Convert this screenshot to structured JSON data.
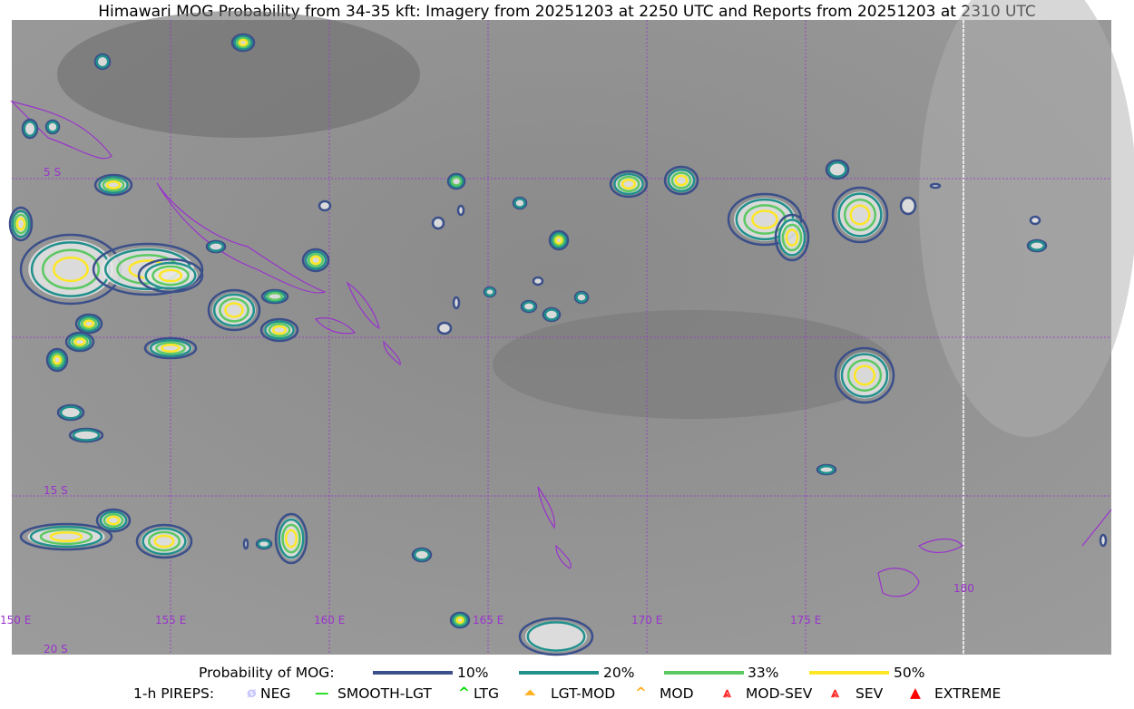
{
  "title": "Himawari MOG Probability from 34-35 kft: Imagery from 20251203 at 2250 UTC and Reports from 20251203 at 2310 UTC",
  "map": {
    "lat_labels": [
      "5 S",
      "15 S",
      "20 S"
    ],
    "lon_labels": [
      "150 E",
      "155 E",
      "160 E",
      "165 E",
      "170 E",
      "175 E",
      "180"
    ],
    "colors": {
      "grid": "#9933cc",
      "coast": "#9933cc",
      "dateline": "#ffffff"
    }
  },
  "legend": {
    "probability_label": "Probability of MOG:",
    "levels": [
      {
        "label": "10%",
        "color": "#3b4f8a"
      },
      {
        "label": "20%",
        "color": "#21908c"
      },
      {
        "label": "33%",
        "color": "#5cc863"
      },
      {
        "label": "50%",
        "color": "#fde725"
      }
    ],
    "pireps_label": "1-h PIREPS:",
    "pireps": [
      {
        "label": "NEG",
        "icon": "neg-icon",
        "color": "#c8c8ff"
      },
      {
        "label": "SMOOTH-LGT",
        "icon": "smooth-line-icon",
        "color": "#22dd22"
      },
      {
        "label": "LTG",
        "icon": "caret-icon",
        "color": "#00dd00"
      },
      {
        "label": "LGT-MOD",
        "icon": "caret-bar-icon",
        "color": "#ffb020"
      },
      {
        "label": "MOD",
        "icon": "caret-icon",
        "color": "#ffb020"
      },
      {
        "label": "MOD-SEV",
        "icon": "double-caret-bar-icon",
        "color": "#ff2020"
      },
      {
        "label": "SEV",
        "icon": "double-caret-icon",
        "color": "#ff2020"
      },
      {
        "label": "EXTREME",
        "icon": "filled-triangle-icon",
        "color": "#ff0000"
      }
    ]
  }
}
